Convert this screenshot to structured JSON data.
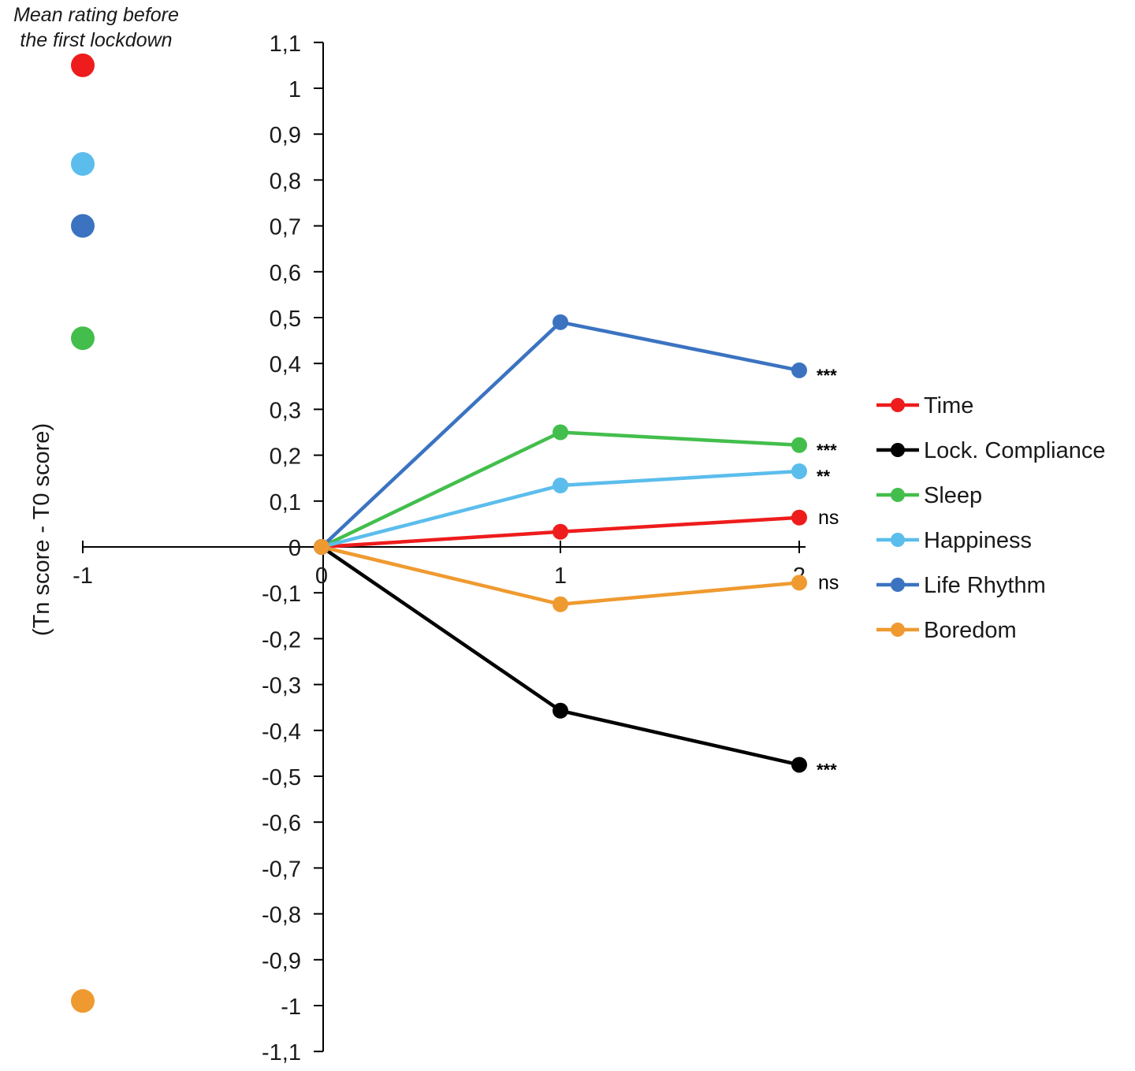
{
  "chart_data": {
    "type": "line",
    "ylabel": "(Tn score - T0 score)",
    "annotation": {
      "line1": "Mean rating before",
      "line2": "the first lockdown"
    },
    "x_ticks": [
      "-1",
      "0",
      "1",
      "2"
    ],
    "ylim": [
      -1.1,
      1.1
    ],
    "y_ticks": [
      "1,1",
      "1",
      "0,9",
      "0,8",
      "0,7",
      "0,6",
      "0,5",
      "0,4",
      "0,3",
      "0,2",
      "0,1",
      "0",
      "-0,1",
      "-0,2",
      "-0,3",
      "-0,4",
      "-0,5",
      "-0,6",
      "-0,7",
      "-0,8",
      "-0,9",
      "-1",
      "-1,1"
    ],
    "baseline_x": -1,
    "series": [
      {
        "name": "Time",
        "color": "#ee1c1c",
        "baseline": 1.05,
        "x": [
          0,
          1,
          2
        ],
        "values": [
          0,
          0.033,
          0.064
        ],
        "significance": "ns"
      },
      {
        "name": "Lock. Compliance",
        "color": "#000000",
        "baseline": null,
        "x": [
          0,
          1,
          2
        ],
        "values": [
          0,
          -0.357,
          -0.475
        ],
        "significance": "***"
      },
      {
        "name": "Sleep",
        "color": "#43be4c",
        "baseline": 0.455,
        "x": [
          0,
          1,
          2
        ],
        "values": [
          0,
          0.25,
          0.222
        ],
        "significance": "***"
      },
      {
        "name": "Happiness",
        "color": "#5bbdec",
        "baseline": 0.835,
        "x": [
          0,
          1,
          2
        ],
        "values": [
          0,
          0.134,
          0.165
        ],
        "significance": "**"
      },
      {
        "name": "Life Rhythm",
        "color": "#3b73c1",
        "baseline": 0.7,
        "x": [
          0,
          1,
          2
        ],
        "values": [
          0,
          0.49,
          0.385
        ],
        "significance": "***"
      },
      {
        "name": "Boredom",
        "color": "#ef9a30",
        "baseline": -0.99,
        "x": [
          0,
          1,
          2
        ],
        "values": [
          0,
          -0.125,
          -0.078
        ],
        "significance": "ns"
      }
    ]
  }
}
